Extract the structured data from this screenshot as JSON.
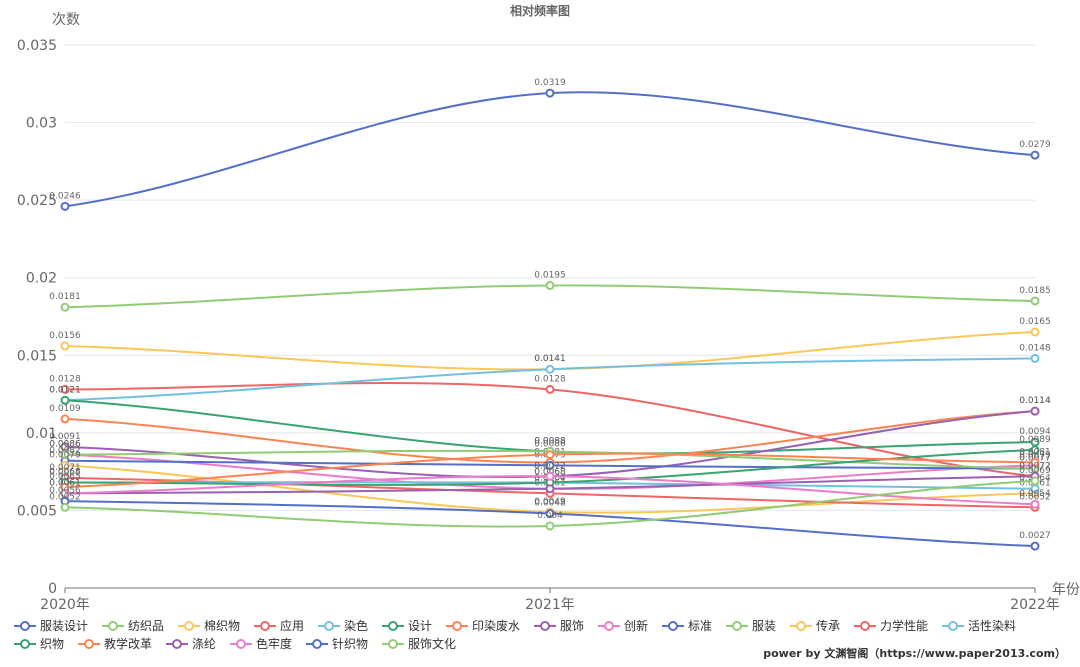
{
  "chart_data": {
    "type": "line",
    "title": "相对频率图",
    "ylabel": "次数",
    "xlabel": "年份",
    "categories": [
      "2020年",
      "2021年",
      "2022年"
    ],
    "ylim": [
      0,
      0.035
    ],
    "yticks": [
      "0",
      "0.005",
      "0.01",
      "0.015",
      "0.02",
      "0.025",
      "0.03",
      "0.035"
    ],
    "yticks_values": [
      0,
      0.005,
      0.01,
      0.015,
      0.02,
      0.025,
      0.03,
      0.035
    ],
    "series": [
      {
        "name": "服装设计",
        "color": "#5470c6",
        "values": [
          0.0246,
          0.0319,
          0.0279
        ]
      },
      {
        "name": "纺织品",
        "color": "#91cc75",
        "values": [
          0.0181,
          0.0195,
          0.0185
        ]
      },
      {
        "name": "棉织物",
        "color": "#fac858",
        "values": [
          0.0156,
          0.0141,
          0.0165
        ]
      },
      {
        "name": "应用",
        "color": "#ee6666",
        "values": [
          0.0128,
          0.0128,
          0.0072
        ]
      },
      {
        "name": "染色",
        "color": "#73c0de",
        "values": [
          0.0121,
          0.0141,
          0.0148
        ]
      },
      {
        "name": "设计",
        "color": "#3ba272",
        "values": [
          0.0121,
          0.0088,
          0.0094
        ]
      },
      {
        "name": "印染废水",
        "color": "#fc8452",
        "values": [
          0.0109,
          0.0081,
          0.0114
        ]
      },
      {
        "name": "服饰",
        "color": "#9a60b4",
        "values": [
          0.0091,
          0.0072,
          0.0114
        ]
      },
      {
        "name": "创新",
        "color": "#ea7ccc",
        "values": [
          0.0086,
          0.0064,
          0.0079
        ]
      },
      {
        "name": "标准",
        "color": "#5470c6",
        "values": [
          0.0082,
          0.0079,
          0.0077
        ]
      },
      {
        "name": "服装",
        "color": "#91cc75",
        "values": [
          0.0086,
          0.0088,
          0.0077
        ]
      },
      {
        "name": "传承",
        "color": "#fac858",
        "values": [
          0.0079,
          0.0049,
          0.0061
        ]
      },
      {
        "name": "力学性能",
        "color": "#ee6666",
        "values": [
          0.0071,
          0.0061,
          0.0052
        ]
      },
      {
        "name": "活性染料",
        "color": "#73c0de",
        "values": [
          0.0068,
          0.0068,
          0.0064
        ]
      },
      {
        "name": "织物",
        "color": "#3ba272",
        "values": [
          0.0068,
          0.0068,
          0.0089
        ]
      },
      {
        "name": "教学改革",
        "color": "#fc8452",
        "values": [
          0.0065,
          0.0086,
          0.0081
        ]
      },
      {
        "name": "涤纶",
        "color": "#9a60b4",
        "values": [
          0.0061,
          0.0064,
          0.0072
        ]
      },
      {
        "name": "色牢度",
        "color": "#ea7ccc",
        "values": [
          0.0061,
          0.0072,
          0.0054
        ]
      },
      {
        "name": "针织物",
        "color": "#5470c6",
        "values": [
          0.0056,
          0.0048,
          0.0027
        ]
      },
      {
        "name": "服饰文化",
        "color": "#91cc75",
        "values": [
          0.0052,
          0.004,
          0.0069
        ]
      }
    ],
    "grid": true,
    "legend_position": "bottom"
  },
  "footer": {
    "credit": "power by 文渊智阁（https://www.paper2013.com）"
  }
}
